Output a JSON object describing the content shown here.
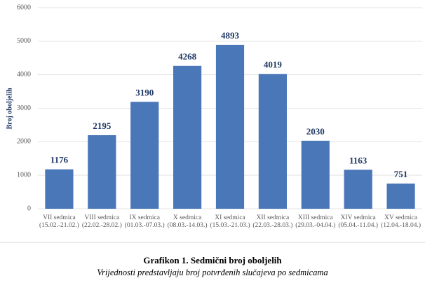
{
  "chart_data": {
    "type": "bar",
    "title": "Grafikon 1. Sedmični broj oboljelih",
    "subtitle": "Vrijednosti predstavljaju broj potvrđenih slučajeva po sedmicama",
    "y_label": "Broj oboljelih",
    "categories": [
      [
        "VII sedmica",
        "(15.02.-21.02.)"
      ],
      [
        "VIII sedmica",
        "(22.02.-28.02.)"
      ],
      [
        "IX sedmica",
        "(01.03.-07.03.)"
      ],
      [
        "X sedmica",
        "(08.03.-14.03.)"
      ],
      [
        "XI sedmica",
        "(15.03.-21.03.)"
      ],
      [
        "XII sedmica",
        "(22.03.-28.03.)"
      ],
      [
        "XIII sedmica",
        "(29.03.-04.04.)"
      ],
      [
        "XIV sedmica",
        "(05.04.-11.04.)"
      ],
      [
        "XV sedmica",
        "(12.04.-18.04.)"
      ]
    ],
    "values": [
      1176,
      2195,
      3190,
      4268,
      4893,
      4019,
      2030,
      1163,
      751
    ],
    "color": "#4a77b8",
    "ylim": [
      0,
      6000
    ],
    "yticks": [
      0,
      1000,
      2000,
      3000,
      4000,
      5000,
      6000
    ],
    "grid": true
  }
}
